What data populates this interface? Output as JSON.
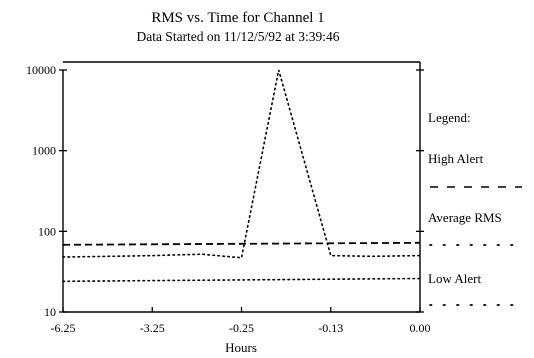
{
  "chart_data": {
    "type": "line",
    "title": "RMS vs. Time for Channel 1",
    "subtitle": "Data Started on 11/12/5/92  at  3:39:46",
    "xlabel": "Hours",
    "ylabel": "",
    "y_scale": "log",
    "ylim": [
      10,
      10000
    ],
    "y_ticks": [
      "10",
      "100",
      "1000",
      "10000"
    ],
    "x_ticks": [
      "-6.25",
      "-3.25",
      "-0.25",
      "-0.13",
      "0.00"
    ],
    "legend": {
      "title": "Legend:",
      "position": "right",
      "entries": [
        "High Alert",
        "Average RMS",
        "Low Alert"
      ]
    },
    "series": [
      {
        "name": "High Alert",
        "style": "dashed",
        "x": [
          -6.25,
          0.0
        ],
        "y": [
          68,
          72
        ]
      },
      {
        "name": "Average RMS",
        "style": "dotted",
        "x": [
          -6.25,
          -4.6,
          -3.25,
          -1.6,
          -0.25,
          -0.2,
          -0.13,
          -0.07,
          0.0
        ],
        "y": [
          48,
          49,
          50,
          52,
          47,
          10000,
          50,
          49,
          50
        ]
      },
      {
        "name": "Low Alert",
        "style": "dotted",
        "x": [
          -6.25,
          0.0
        ],
        "y": [
          24,
          26
        ]
      }
    ]
  }
}
